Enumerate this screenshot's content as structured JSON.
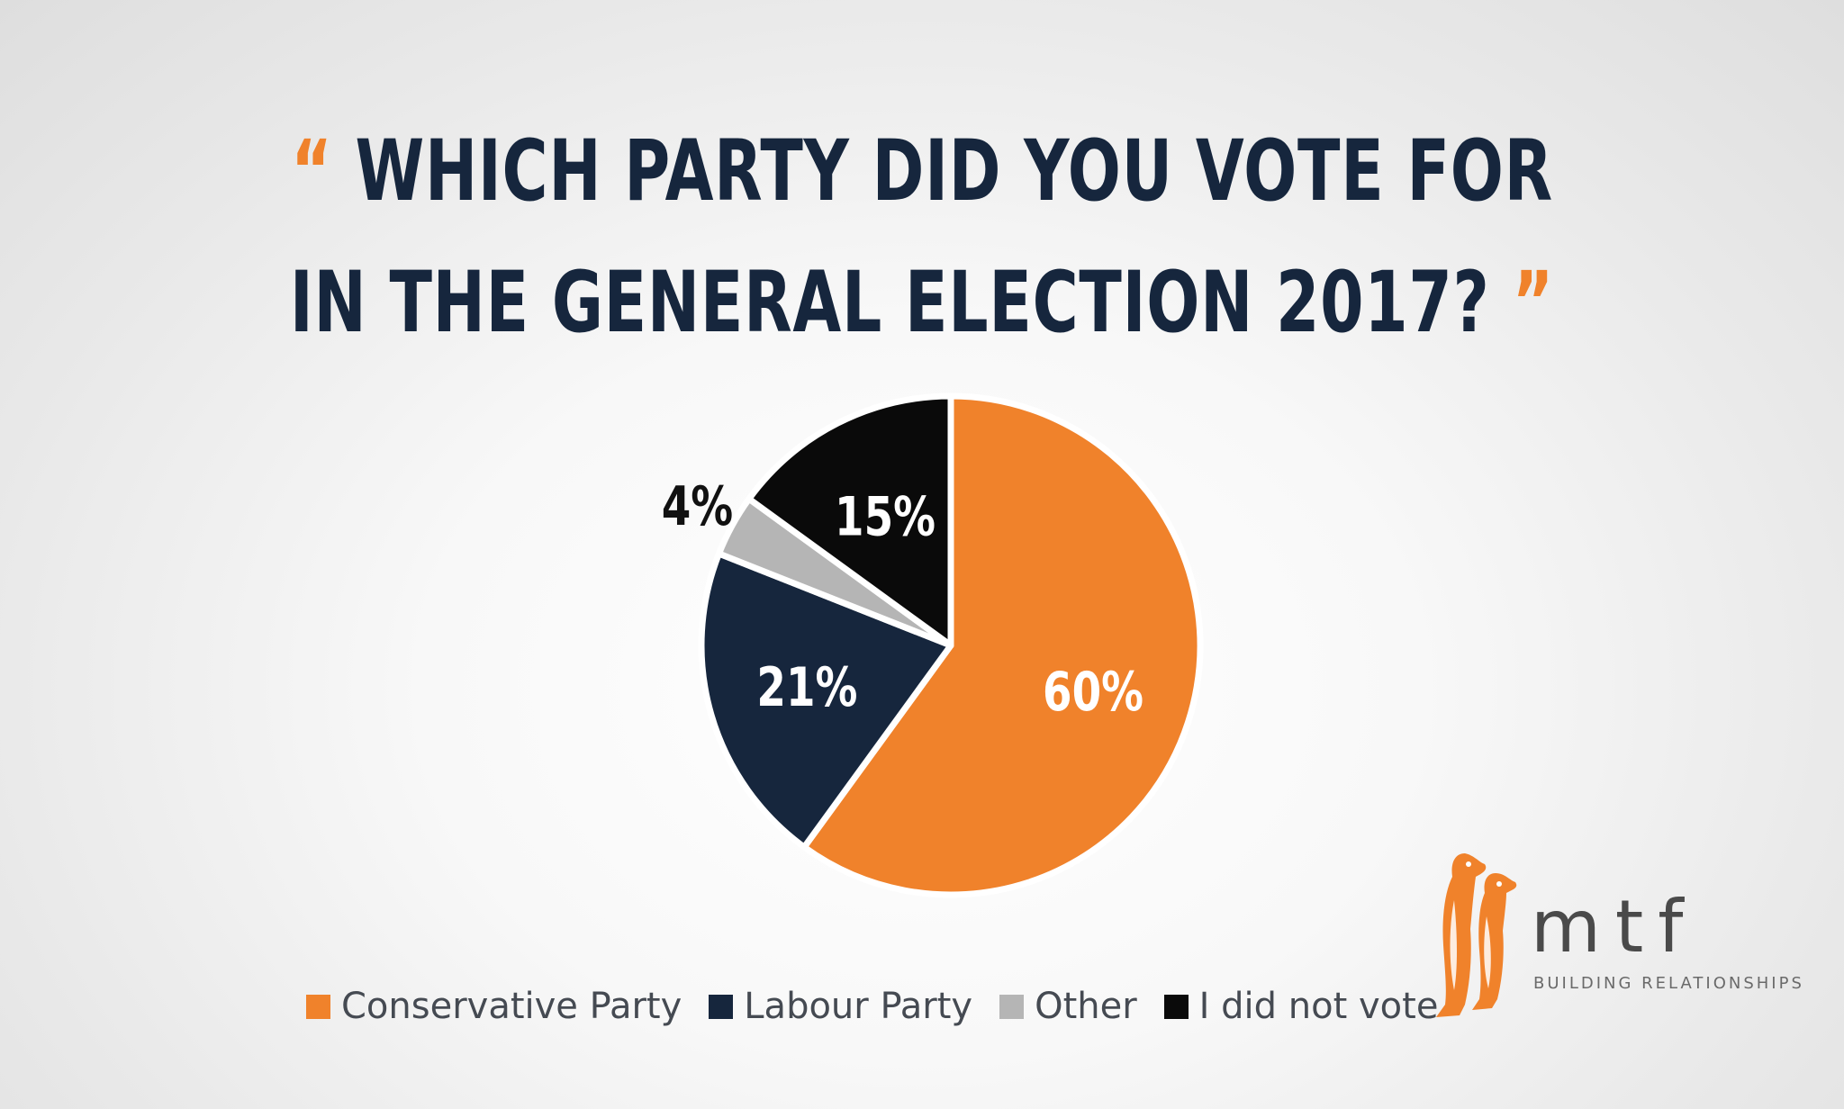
{
  "title": {
    "open_quote": "“",
    "line1": "WHICH PARTY DID YOU VOTE FOR",
    "line2": "IN THE GENERAL ELECTION 2017?",
    "close_quote": "”"
  },
  "chart_data": {
    "type": "pie",
    "title": "“ WHICH PARTY DID YOU VOTE FOR IN THE GENERAL ELECTION 2017? ”",
    "categories": [
      "Conservative Party",
      "Labour Party",
      "Other",
      "I did not vote"
    ],
    "values": [
      60,
      21,
      4,
      15
    ],
    "labels": [
      "60%",
      "21%",
      "4%",
      "15%"
    ],
    "colors": [
      "#f0822b",
      "#16263d",
      "#b5b5b5",
      "#0a0a0a"
    ],
    "label_colors": [
      "#ffffff",
      "#ffffff",
      "#111111",
      "#ffffff"
    ],
    "start": "12 o'clock",
    "direction": "clockwise",
    "legend_position": "bottom"
  },
  "legend": {
    "items": [
      {
        "label": "Conservative Party",
        "color": "#f0822b"
      },
      {
        "label": "Labour Party",
        "color": "#16263d"
      },
      {
        "label": "Other",
        "color": "#b5b5b5"
      },
      {
        "label": "I did not vote",
        "color": "#0a0a0a"
      }
    ]
  },
  "logo": {
    "wordmark": "mtf",
    "tagline": "BUILDING RELATIONSHIPS",
    "icon": "penguins-icon",
    "color": "#f0822b"
  }
}
